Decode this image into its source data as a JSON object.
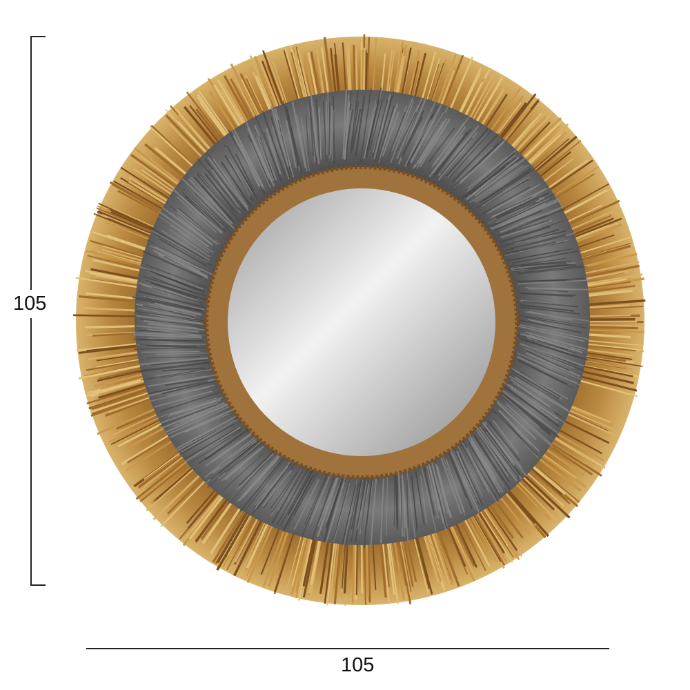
{
  "dimensions": {
    "height_label": "105",
    "width_label": "105"
  },
  "colors": {
    "straw": "#c79a4e",
    "straw_dark": "#8a5a22",
    "fringe": "#6e6e6e",
    "rope": "#a0723c",
    "mirror": "#d8d8d8"
  }
}
